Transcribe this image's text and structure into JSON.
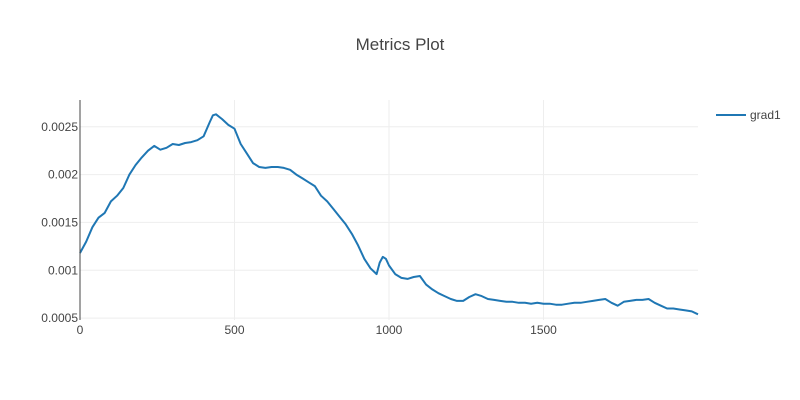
{
  "chart_data": {
    "type": "line",
    "title": "Metrics Plot",
    "xlabel": "",
    "ylabel": "",
    "xlim": [
      0,
      2000
    ],
    "ylim": [
      0.00048,
      0.00278
    ],
    "grid": true,
    "legend_position": "top-right",
    "x_ticks": [
      {
        "value": 0,
        "label": "0"
      },
      {
        "value": 500,
        "label": "500"
      },
      {
        "value": 1000,
        "label": "1000"
      },
      {
        "value": 1500,
        "label": "1500"
      }
    ],
    "y_ticks": [
      {
        "value": 0.0005,
        "label": "0.0005"
      },
      {
        "value": 0.001,
        "label": "0.001"
      },
      {
        "value": 0.0015,
        "label": "0.0015"
      },
      {
        "value": 0.002,
        "label": "0.002"
      },
      {
        "value": 0.0025,
        "label": "0.0025"
      }
    ],
    "series": [
      {
        "name": "grad1",
        "color": "#1f77b4",
        "x": [
          0,
          20,
          40,
          60,
          80,
          100,
          120,
          140,
          160,
          180,
          200,
          220,
          240,
          260,
          280,
          300,
          320,
          340,
          360,
          380,
          400,
          420,
          430,
          440,
          460,
          480,
          500,
          520,
          540,
          560,
          580,
          600,
          620,
          640,
          660,
          680,
          700,
          720,
          740,
          760,
          780,
          800,
          820,
          840,
          860,
          880,
          900,
          920,
          940,
          960,
          970,
          980,
          990,
          1000,
          1020,
          1040,
          1060,
          1080,
          1100,
          1120,
          1140,
          1160,
          1180,
          1200,
          1220,
          1240,
          1260,
          1280,
          1300,
          1320,
          1340,
          1360,
          1380,
          1400,
          1420,
          1440,
          1460,
          1480,
          1500,
          1520,
          1540,
          1560,
          1580,
          1600,
          1620,
          1640,
          1660,
          1680,
          1700,
          1720,
          1740,
          1760,
          1780,
          1800,
          1820,
          1840,
          1860,
          1880,
          1900,
          1920,
          1940,
          1960,
          1980,
          2000
        ],
        "y": [
          0.00118,
          0.0013,
          0.00145,
          0.00155,
          0.0016,
          0.00172,
          0.00178,
          0.00186,
          0.002,
          0.0021,
          0.00218,
          0.00225,
          0.0023,
          0.00226,
          0.00228,
          0.00232,
          0.00231,
          0.00233,
          0.00234,
          0.00236,
          0.0024,
          0.00255,
          0.00262,
          0.00263,
          0.00258,
          0.00252,
          0.00248,
          0.00232,
          0.00222,
          0.00212,
          0.00208,
          0.00207,
          0.00208,
          0.00208,
          0.00207,
          0.00205,
          0.002,
          0.00196,
          0.00192,
          0.00188,
          0.00178,
          0.00172,
          0.00164,
          0.00156,
          0.00148,
          0.00138,
          0.00126,
          0.00112,
          0.00102,
          0.00096,
          0.00108,
          0.00114,
          0.00112,
          0.00105,
          0.00096,
          0.00092,
          0.00091,
          0.00093,
          0.00094,
          0.00085,
          0.0008,
          0.00076,
          0.00073,
          0.0007,
          0.00068,
          0.00068,
          0.00072,
          0.00075,
          0.00073,
          0.0007,
          0.00069,
          0.00068,
          0.00067,
          0.00067,
          0.00066,
          0.00066,
          0.00065,
          0.00066,
          0.00065,
          0.00065,
          0.00064,
          0.00064,
          0.00065,
          0.00066,
          0.00066,
          0.00067,
          0.00068,
          0.00069,
          0.0007,
          0.00066,
          0.00063,
          0.00067,
          0.00068,
          0.00069,
          0.00069,
          0.0007,
          0.00066,
          0.00063,
          0.0006,
          0.0006,
          0.00059,
          0.00058,
          0.00057,
          0.00054
        ]
      }
    ]
  }
}
